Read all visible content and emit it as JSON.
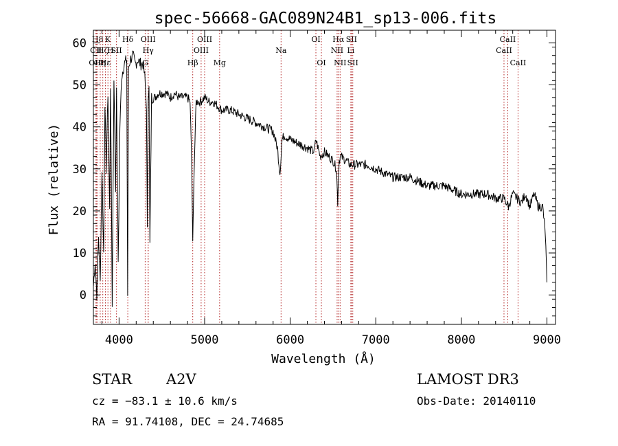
{
  "chart_data": {
    "type": "line",
    "title": "spec-56668-GAC089N24B1_sp13-006.fits",
    "xlabel": "Wavelength (Å)",
    "ylabel": "Flux (relative)",
    "xlim": [
      3700,
      9100
    ],
    "ylim": [
      -7,
      63
    ],
    "x_ticks": [
      4000,
      5000,
      6000,
      7000,
      8000,
      9000
    ],
    "y_ticks": [
      0,
      10,
      20,
      30,
      40,
      50,
      60
    ],
    "grid": false,
    "series": [
      {
        "name": "flux",
        "x": [
          3700,
          3720,
          3740,
          3760,
          3780,
          3800,
          3820,
          3835,
          3850,
          3870,
          3890,
          3900,
          3920,
          3940,
          3960,
          3970,
          3990,
          4010,
          4030,
          4060,
          4090,
          4100,
          4110,
          4130,
          4160,
          4190,
          4220,
          4250,
          4280,
          4300,
          4320,
          4330,
          4340,
          4350,
          4360,
          4380,
          4420,
          4460,
          4500,
          4550,
          4600,
          4650,
          4700,
          4750,
          4800,
          4830,
          4850,
          4861,
          4875,
          4900,
          4950,
          5000,
          5050,
          5100,
          5150,
          5200,
          5300,
          5400,
          5500,
          5600,
          5700,
          5800,
          5850,
          5880,
          5893,
          5905,
          5930,
          6000,
          6100,
          6200,
          6280,
          6300,
          6350,
          6400,
          6450,
          6500,
          6540,
          6555,
          6563,
          6572,
          6590,
          6650,
          6700,
          6800,
          6900,
          7000,
          7100,
          7200,
          7300,
          7400,
          7500,
          7600,
          7700,
          7800,
          7900,
          8000,
          8100,
          8200,
          8300,
          8400,
          8500,
          8550,
          8600,
          8650,
          8700,
          8750,
          8800,
          8850,
          8900,
          8950,
          8980,
          9000
        ],
        "y": [
          2,
          8,
          0,
          14,
          3,
          30,
          10,
          46,
          30,
          48,
          20,
          50,
          -2,
          52,
          25,
          48,
          8,
          40,
          52,
          55,
          56,
          0,
          54,
          56,
          57,
          55,
          56,
          55,
          55,
          52,
          45,
          15,
          48,
          49,
          12,
          47,
          47,
          48,
          48,
          48,
          47,
          48,
          47,
          47,
          47,
          46,
          30,
          12,
          28,
          46,
          46,
          47,
          46,
          46,
          45,
          44,
          44,
          43,
          42,
          41,
          40,
          39,
          35,
          29,
          33,
          37,
          38,
          37,
          36,
          35,
          34,
          37,
          33,
          34,
          33,
          32,
          30,
          22,
          28,
          32,
          33,
          32,
          31,
          31,
          31,
          30,
          29,
          28,
          28,
          28,
          27,
          26,
          26,
          26,
          25,
          24,
          24,
          24,
          24,
          23,
          23,
          21,
          24,
          23,
          22,
          24,
          21,
          24,
          21,
          21,
          15,
          3
        ]
      }
    ],
    "line_markers": [
      {
        "label": "H8",
        "x": 3750,
        "row": 0
      },
      {
        "label": "CII",
        "x": 3730,
        "row": 1
      },
      {
        "label": "OIII",
        "x": 3735,
        "row": 2
      },
      {
        "label": "Hη",
        "x": 3780,
        "row": 2
      },
      {
        "label": "Hζ",
        "x": 3810,
        "row": 1
      },
      {
        "label": "K",
        "x": 3870,
        "row": 0
      },
      {
        "label": "Hε",
        "x": 3840,
        "row": 2
      },
      {
        "label": "H",
        "x": 3900,
        "row": 1
      },
      {
        "label": "SII",
        "x": 3970,
        "row": 1
      },
      {
        "label": "Hδ",
        "x": 4102,
        "row": 0
      },
      {
        "label": "OIII",
        "x": 4340,
        "row": 0
      },
      {
        "label": "Hγ",
        "x": 4340,
        "row": 1
      },
      {
        "label": "G",
        "x": 4305,
        "row": 2
      },
      {
        "label": "OIII",
        "x": 5000,
        "row": 0
      },
      {
        "label": "OIII",
        "x": 4959,
        "row": 1
      },
      {
        "label": "Hβ",
        "x": 4861,
        "row": 2
      },
      {
        "label": "Mg",
        "x": 5175,
        "row": 2
      },
      {
        "label": "Na",
        "x": 5893,
        "row": 1
      },
      {
        "label": "OI",
        "x": 6300,
        "row": 0
      },
      {
        "label": "OI",
        "x": 6364,
        "row": 2
      },
      {
        "label": "Hα",
        "x": 6563,
        "row": 0
      },
      {
        "label": "NII",
        "x": 6548,
        "row": 1
      },
      {
        "label": "NII",
        "x": 6583,
        "row": 2
      },
      {
        "label": "SII",
        "x": 6716,
        "row": 0
      },
      {
        "label": "Li",
        "x": 6708,
        "row": 1
      },
      {
        "label": "SII",
        "x": 6731,
        "row": 2
      },
      {
        "label": "CaII",
        "x": 8542,
        "row": 0
      },
      {
        "label": "CaII",
        "x": 8498,
        "row": 1
      },
      {
        "label": "CaII",
        "x": 8662,
        "row": 2
      }
    ]
  },
  "info": {
    "object_class": "STAR",
    "subclass": "A2V",
    "survey": "LAMOST DR3",
    "redshift_line": "cz = −83.1 ± 10.6 km/s",
    "obs_date": "Obs-Date: 20140110",
    "coords": "RA =  91.74108, DEC =  24.74685"
  },
  "colors": {
    "line_marker": "#b22222",
    "spectrum": "#000000",
    "axes": "#000000"
  }
}
